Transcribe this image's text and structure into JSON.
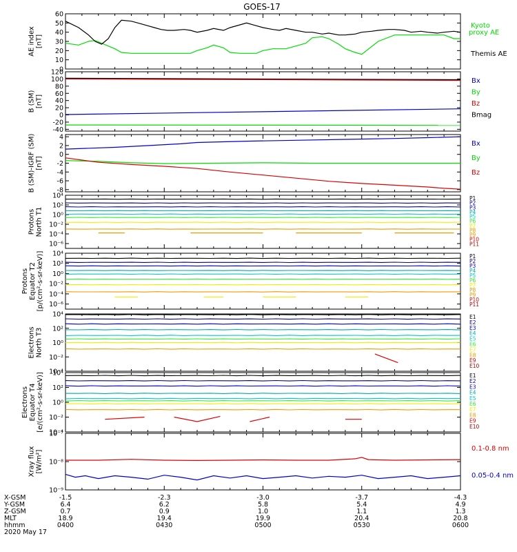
{
  "title": "GOES-17",
  "colors": {
    "black": "#000000",
    "green": "#00dd00",
    "red": "#dd0000",
    "blue": "#0000cc",
    "cyan": "#00c8c8",
    "teal": "#00aaaa",
    "lime": "#33ee33",
    "yellow": "#eeee00",
    "orange": "#ee9900",
    "navy": "#000088",
    "maroon": "#aa0000"
  },
  "panels": [
    {
      "key": "ae",
      "ylabel": [
        "AE index",
        "[nT]"
      ],
      "yticks": [
        "0",
        "10",
        "20",
        "30",
        "40",
        "50",
        "60"
      ],
      "ylim": [
        0,
        60
      ],
      "scale": "linear",
      "legend": [
        {
          "text": "Kyoto",
          "color": "green"
        },
        {
          "text": "proxy AE",
          "color": "green"
        },
        {
          "text": "Themis AE",
          "color": "black"
        }
      ]
    },
    {
      "key": "bsm",
      "ylabel": [
        "B (SM)",
        "[nT]"
      ],
      "yticks": [
        "-40",
        "-20",
        "0",
        "20",
        "40",
        "60",
        "80",
        "100",
        "120"
      ],
      "ylim": [
        -45,
        120
      ],
      "scale": "linear",
      "legend": [
        {
          "text": "Bx",
          "color": "blue"
        },
        {
          "text": "By",
          "color": "green"
        },
        {
          "text": "Bz",
          "color": "red"
        },
        {
          "text": "Bmag",
          "color": "black"
        }
      ]
    },
    {
      "key": "bigrf",
      "ylabel": [
        "B (SM)-IGRF (SM)",
        "[nT]"
      ],
      "yticks": [
        "-8",
        "-6",
        "-4",
        "-2",
        "0",
        "2",
        "4"
      ],
      "ylim": [
        -8.5,
        4.5
      ],
      "scale": "linear",
      "legend": [
        {
          "text": "Bx",
          "color": "blue"
        },
        {
          "text": "By",
          "color": "green"
        },
        {
          "text": "Bz",
          "color": "red"
        }
      ]
    },
    {
      "key": "pnorth",
      "ylabel": [
        "Protons",
        "North T1"
      ],
      "yticks": [
        "10⁻⁶",
        "10⁻⁴",
        "10⁻²",
        "10⁰",
        "10²",
        "10⁴"
      ],
      "ylim": [
        -7,
        4
      ],
      "scale": "log",
      "legend": [
        {
          "text": "P1",
          "color": "black"
        },
        {
          "text": "P2",
          "color": "navy"
        },
        {
          "text": "P3",
          "color": "blue"
        },
        {
          "text": "P4",
          "color": "teal"
        },
        {
          "text": "P5",
          "color": "cyan"
        },
        {
          "text": "P6",
          "color": "lime"
        },
        {
          "text": "P7",
          "color": "yellow"
        },
        {
          "text": "P8",
          "color": "orange"
        },
        {
          "text": "P9",
          "color": "orange"
        },
        {
          "text": "P10",
          "color": "red"
        },
        {
          "text": "P11",
          "color": "maroon"
        }
      ]
    },
    {
      "key": "pequator",
      "ylabel": [
        "Protons",
        "Equator T2",
        "[p/(cm²-s-sr-keV)]"
      ],
      "yticks": [
        "10⁻⁶",
        "10⁻⁴",
        "10⁻²",
        "10⁰",
        "10²",
        "10⁴"
      ],
      "ylim": [
        -7,
        4
      ],
      "scale": "log",
      "legend": [
        {
          "text": "P1",
          "color": "black"
        },
        {
          "text": "P2",
          "color": "navy"
        },
        {
          "text": "P3",
          "color": "blue"
        },
        {
          "text": "P4",
          "color": "teal"
        },
        {
          "text": "P5",
          "color": "cyan"
        },
        {
          "text": "P6",
          "color": "lime"
        },
        {
          "text": "P7",
          "color": "yellow"
        },
        {
          "text": "P8",
          "color": "orange"
        },
        {
          "text": "P9",
          "color": "orange"
        },
        {
          "text": "P10",
          "color": "red"
        },
        {
          "text": "P11",
          "color": "maroon"
        }
      ]
    },
    {
      "key": "enorth",
      "ylabel": [
        "Electrons",
        "North T3"
      ],
      "yticks": [
        "10⁻⁴",
        "10⁻²",
        "10⁰",
        "10²",
        "10⁴"
      ],
      "ylim": [
        -4,
        4
      ],
      "scale": "log",
      "legend": [
        {
          "text": "E1",
          "color": "black"
        },
        {
          "text": "E2",
          "color": "navy"
        },
        {
          "text": "E3",
          "color": "blue"
        },
        {
          "text": "E4",
          "color": "teal"
        },
        {
          "text": "E5",
          "color": "cyan"
        },
        {
          "text": "E6",
          "color": "lime"
        },
        {
          "text": "E7",
          "color": "yellow"
        },
        {
          "text": "E8",
          "color": "orange"
        },
        {
          "text": "E9",
          "color": "red"
        },
        {
          "text": "E10",
          "color": "maroon"
        }
      ]
    },
    {
      "key": "eequator",
      "ylabel": [
        "Electrons",
        "Equator T4",
        "[e/(cm²-s-sr-keV)]"
      ],
      "yticks": [
        "10⁻⁴",
        "10⁻²",
        "10⁰",
        "10²",
        "10⁴"
      ],
      "ylim": [
        -4,
        4
      ],
      "scale": "log",
      "legend": [
        {
          "text": "E1",
          "color": "black"
        },
        {
          "text": "E2",
          "color": "navy"
        },
        {
          "text": "E3",
          "color": "blue"
        },
        {
          "text": "E4",
          "color": "teal"
        },
        {
          "text": "E5",
          "color": "cyan"
        },
        {
          "text": "E6",
          "color": "lime"
        },
        {
          "text": "E7",
          "color": "yellow"
        },
        {
          "text": "E8",
          "color": "orange"
        },
        {
          "text": "E9",
          "color": "red"
        },
        {
          "text": "E10",
          "color": "maroon"
        }
      ]
    },
    {
      "key": "xray",
      "ylabel": [
        "Xray flux",
        "[W/m²]"
      ],
      "yticks": [
        "10⁻⁹",
        "10⁻⁸",
        "10⁻⁷"
      ],
      "ylim": [
        -9,
        -7
      ],
      "scale": "log",
      "legend": [
        {
          "text": "0.1-0.8 nm",
          "color": "red"
        },
        {
          "text": "0.05-0.4 nm",
          "color": "blue"
        }
      ]
    }
  ],
  "xaxis": {
    "rows": [
      {
        "label": "X-GSM",
        "values": [
          "-1.5",
          "-2.3",
          "-3.0",
          "-3.7",
          "-4.3"
        ]
      },
      {
        "label": "Y-GSM",
        "values": [
          "6.4",
          "6.2",
          "5.8",
          "5.4",
          "4.9"
        ]
      },
      {
        "label": "Z-GSM",
        "values": [
          "0.7",
          "0.9",
          "1.0",
          "1.1",
          "1.3"
        ]
      },
      {
        "label": "MLT",
        "values": [
          "18.9",
          "19.4",
          "19.9",
          "20.4",
          "20.8"
        ]
      },
      {
        "label": "hhmm",
        "values": [
          "0400",
          "0430",
          "0500",
          "0530",
          "0600"
        ]
      }
    ],
    "date": "2020 May 17"
  },
  "chart_data": {
    "type": "line",
    "title": "GOES-17",
    "x_unit_minutes_since": "0400",
    "x_range": [
      0,
      120
    ],
    "series": {
      "ae": {
        "themis": {
          "color": "black",
          "x": [
            0,
            4,
            7,
            9,
            11,
            13,
            15,
            17,
            20,
            22,
            25,
            27,
            29,
            31,
            33,
            36,
            38,
            40,
            43,
            45,
            48,
            50,
            53,
            55,
            58,
            60,
            63,
            65,
            67,
            70,
            73,
            75,
            78,
            80,
            83,
            85,
            88,
            90,
            93,
            95,
            98,
            100,
            103,
            105,
            108,
            110,
            113,
            115,
            118,
            120
          ],
          "y": [
            52,
            45,
            37,
            30,
            27,
            33,
            45,
            53,
            52,
            50,
            47,
            45,
            43,
            42,
            42,
            43,
            42,
            40,
            42,
            44,
            42,
            45,
            48,
            50,
            47,
            45,
            43,
            42,
            44,
            42,
            40,
            40,
            38,
            39,
            37,
            37,
            38,
            40,
            41,
            42,
            43,
            43,
            42,
            40,
            41,
            40,
            39,
            40,
            41,
            40
          ]
        },
        "kyoto": {
          "color": "green",
          "x": [
            0,
            4,
            7,
            9,
            11,
            13,
            15,
            17,
            20,
            25,
            30,
            35,
            38,
            40,
            43,
            45,
            48,
            50,
            53,
            55,
            58,
            60,
            63,
            65,
            67,
            70,
            73,
            75,
            78,
            80,
            83,
            85,
            88,
            90,
            95,
            100,
            105,
            110,
            113,
            115,
            118,
            120
          ],
          "y": [
            28,
            26,
            30,
            31,
            28,
            25,
            22,
            18,
            17,
            17,
            17,
            17,
            17,
            20,
            23,
            26,
            23,
            18,
            17,
            17,
            17,
            20,
            22,
            22,
            22,
            25,
            28,
            34,
            35,
            33,
            27,
            22,
            18,
            16,
            30,
            37,
            37,
            37,
            37,
            37,
            33,
            33
          ]
        }
      },
      "bsm": {
        "bmag": {
          "color": "black",
          "x": [
            0,
            120
          ],
          "y": [
            102,
            98
          ]
        },
        "bz": {
          "color": "red",
          "x": [
            0,
            120
          ],
          "y": [
            100,
            96
          ]
        },
        "bx": {
          "color": "blue",
          "x": [
            0,
            120
          ],
          "y": [
            1,
            17
          ]
        },
        "by": {
          "color": "green",
          "x": [
            0,
            120
          ],
          "y": [
            -28,
            -29
          ]
        }
      },
      "bigrf": {
        "bx": {
          "color": "blue",
          "x": [
            0,
            15,
            25,
            35,
            40,
            55,
            70,
            85,
            100,
            110,
            120
          ],
          "y": [
            1.2,
            1.6,
            2.0,
            2.4,
            2.7,
            3.0,
            3.2,
            3.4,
            3.6,
            3.8,
            4.0
          ]
        },
        "by": {
          "color": "green",
          "x": [
            0,
            10,
            20,
            30,
            45,
            60,
            75,
            90,
            105,
            120
          ],
          "y": [
            -1.4,
            -1.6,
            -1.9,
            -2.1,
            -2.0,
            -1.9,
            -2.0,
            -2.0,
            -2.0,
            -2.0
          ]
        },
        "bz": {
          "color": "red",
          "x": [
            0,
            5,
            10,
            20,
            30,
            40,
            50,
            60,
            70,
            80,
            90,
            100,
            110,
            115,
            120
          ],
          "y": [
            -0.8,
            -1.3,
            -1.8,
            -2.3,
            -2.7,
            -3.2,
            -4.0,
            -4.7,
            -5.4,
            -6.1,
            -6.6,
            -7.0,
            -7.4,
            -7.7,
            -7.9
          ]
        }
      },
      "pnorth": {
        "levels": [
          {
            "c": "black",
            "v": 3.2
          },
          {
            "c": "navy",
            "v": 2.4
          },
          {
            "c": "blue",
            "v": 1.6
          },
          {
            "c": "teal",
            "v": 0.8
          },
          {
            "c": "cyan",
            "v": 0.1
          },
          {
            "c": "lime",
            "v": -0.6
          },
          {
            "c": "yellow",
            "v": -1.6
          },
          {
            "c": "orange",
            "v": -3.0
          }
        ]
      },
      "pequator": {
        "levels": [
          {
            "c": "black",
            "v": 3.0
          },
          {
            "c": "navy",
            "v": 2.2
          },
          {
            "c": "blue",
            "v": 1.5
          },
          {
            "c": "teal",
            "v": 0.6
          },
          {
            "c": "cyan",
            "v": -0.1
          },
          {
            "c": "lime",
            "v": -1.1
          },
          {
            "c": "yellow",
            "v": -2.2
          },
          {
            "c": "orange",
            "v": -3.6
          }
        ]
      },
      "enorth": {
        "levels": [
          {
            "c": "black",
            "v": 3.9
          },
          {
            "c": "navy",
            "v": 3.3
          },
          {
            "c": "blue",
            "v": 2.6
          },
          {
            "c": "teal",
            "v": 1.8
          },
          {
            "c": "cyan",
            "v": 1.0
          },
          {
            "c": "lime",
            "v": 0.5
          },
          {
            "c": "yellow",
            "v": 0.0
          },
          {
            "c": "orange",
            "v": -0.9
          }
        ],
        "e9_segment": {
          "color": "red",
          "x": [
            94,
            101
          ],
          "y": [
            -1.6,
            -2.8
          ]
        }
      },
      "eequator": {
        "levels": [
          {
            "c": "black",
            "v": 3.6
          },
          {
            "c": "navy",
            "v": 2.9
          },
          {
            "c": "blue",
            "v": 2.2
          },
          {
            "c": "teal",
            "v": 1.2
          },
          {
            "c": "cyan",
            "v": 0.5
          },
          {
            "c": "lime",
            "v": 0.2
          },
          {
            "c": "yellow",
            "v": -0.2
          },
          {
            "c": "orange",
            "v": -1.0
          }
        ],
        "e9_segments": [
          {
            "x": [
              12,
              24
            ],
            "y": [
              -2.3,
              -2.0
            ]
          },
          {
            "x": [
              33,
              40,
              47
            ],
            "y": [
              -2.0,
              -2.6,
              -1.9
            ]
          },
          {
            "x": [
              56,
              62
            ],
            "y": [
              -2.6,
              -2.0
            ]
          },
          {
            "x": [
              85,
              90
            ],
            "y": [
              -2.3,
              -2.3
            ]
          }
        ]
      },
      "xray": {
        "long": {
          "color": "red",
          "x": [
            0,
            10,
            20,
            30,
            40,
            50,
            60,
            70,
            80,
            88,
            90,
            92,
            100,
            110,
            120
          ],
          "y": [
            -7.95,
            -7.95,
            -7.92,
            -7.95,
            -7.96,
            -7.95,
            -7.94,
            -7.95,
            -7.95,
            -7.9,
            -7.85,
            -7.93,
            -7.95,
            -7.94,
            -7.93
          ]
        },
        "short": {
          "color": "blue",
          "x": [
            0,
            3,
            6,
            10,
            15,
            20,
            25,
            30,
            35,
            40,
            45,
            50,
            55,
            60,
            65,
            70,
            75,
            80,
            85,
            90,
            95,
            100,
            105,
            110,
            115,
            120
          ],
          "y": [
            -8.45,
            -8.55,
            -8.5,
            -8.6,
            -8.5,
            -8.55,
            -8.62,
            -8.48,
            -8.55,
            -8.65,
            -8.5,
            -8.58,
            -8.5,
            -8.6,
            -8.55,
            -8.5,
            -8.58,
            -8.52,
            -8.55,
            -8.48,
            -8.6,
            -8.55,
            -8.5,
            -8.6,
            -8.55,
            -8.5
          ]
        }
      }
    }
  }
}
